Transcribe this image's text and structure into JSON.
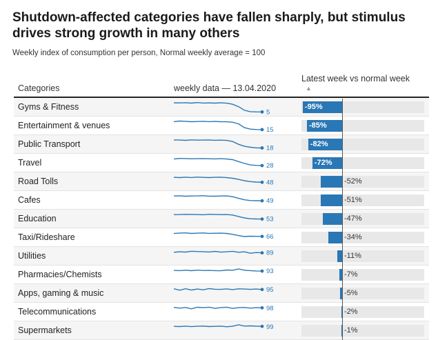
{
  "title": "Shutdown-affected categories have fallen sharply, but stimulus drives strong growth in many others",
  "subtitle": "Weekly index of consumption per person, Normal weekly average = 100",
  "columns": {
    "category": "Categories",
    "weekly": "weekly data — 13.04.2020",
    "latest": "Latest week vs normal week",
    "sort_icon": "sort-ascending-triangle-icon"
  },
  "colors": {
    "bar": "#2a77b5",
    "track": "#e8e8e8",
    "line": "#2a77b5"
  },
  "chart_data": {
    "type": "bar",
    "title": "Shutdown-affected categories have fallen sharply, but stimulus drives strong growth in many others",
    "subtitle": "Weekly index of consumption per person, Normal weekly average = 100",
    "xlabel": "Latest week vs normal week",
    "xlim": [
      -100,
      100
    ],
    "categories": [
      "Gyms & Fitness",
      "Entertainment & venues",
      "Public Transport",
      "Travel",
      "Road Tolls",
      "Cafes",
      "Education",
      "Taxi/Rideshare",
      "Utilities",
      "Pharmacies/Chemists",
      "Apps, gaming & music",
      "Telecommunications",
      "Supermarkets"
    ],
    "change_labels": [
      "-95%",
      "-85%",
      "-82%",
      "-72%",
      "-52%",
      "-51%",
      "-47%",
      "-34%",
      "-11%",
      "-7%",
      "-5%",
      "-2%",
      "-1%"
    ],
    "change_values": [
      -95,
      -85,
      -82,
      -72,
      -52,
      -51,
      -47,
      -34,
      -11,
      -7,
      -5,
      -2,
      -1
    ],
    "latest_index_labels": [
      "5",
      "15",
      "18",
      "28",
      "48",
      "49",
      "53",
      "66",
      "89",
      "93",
      "95",
      "98",
      "99"
    ],
    "sparklines": [
      [
        100,
        99,
        101,
        97,
        103,
        98,
        99,
        97,
        100,
        96,
        85,
        60,
        22,
        8,
        6,
        5
      ],
      [
        98,
        104,
        101,
        97,
        99,
        101,
        98,
        100,
        97,
        96,
        92,
        75,
        35,
        20,
        16,
        15
      ],
      [
        101,
        100,
        97,
        102,
        99,
        100,
        101,
        98,
        99,
        96,
        85,
        55,
        35,
        25,
        19,
        18
      ],
      [
        96,
        103,
        101,
        99,
        100,
        101,
        99,
        98,
        100,
        96,
        90,
        70,
        50,
        35,
        30,
        28
      ],
      [
        100,
        97,
        101,
        98,
        102,
        99,
        97,
        100,
        101,
        96,
        90,
        78,
        65,
        55,
        50,
        48
      ],
      [
        100,
        101,
        97,
        99,
        100,
        102,
        98,
        97,
        99,
        100,
        92,
        75,
        60,
        52,
        50,
        49
      ],
      [
        99,
        100,
        102,
        101,
        100,
        98,
        103,
        101,
        99,
        100,
        95,
        80,
        65,
        56,
        54,
        53
      ],
      [
        96,
        101,
        103,
        97,
        100,
        102,
        98,
        99,
        100,
        97,
        88,
        75,
        65,
        68,
        67,
        66
      ],
      [
        95,
        100,
        97,
        106,
        103,
        101,
        98,
        104,
        96,
        100,
        105,
        95,
        100,
        85,
        92,
        89
      ],
      [
        100,
        98,
        102,
        97,
        103,
        99,
        100,
        98,
        96,
        104,
        101,
        115,
        102,
        98,
        94,
        93
      ],
      [
        103,
        88,
        103,
        90,
        100,
        92,
        104,
        98,
        96,
        101,
        94,
        102,
        100,
        96,
        100,
        95
      ],
      [
        103,
        95,
        102,
        88,
        104,
        100,
        105,
        93,
        100,
        105,
        92,
        100,
        102,
        95,
        100,
        98
      ],
      [
        99,
        97,
        101,
        96,
        100,
        102,
        97,
        99,
        101,
        95,
        100,
        115,
        102,
        104,
        101,
        99
      ]
    ],
    "sparkline_range": [
      0,
      115
    ]
  }
}
